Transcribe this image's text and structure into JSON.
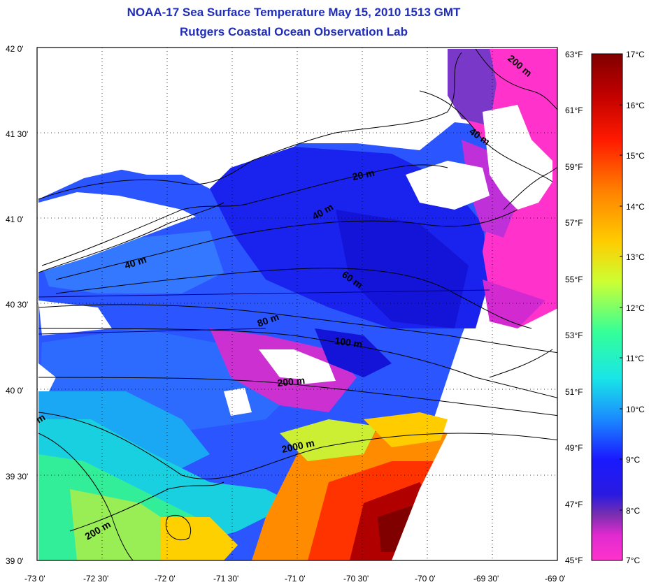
{
  "title": {
    "line1": "NOAA-17 Sea Surface Temperature May 15, 2010 1513 GMT",
    "line2": "Rutgers Coastal Ocean Observation Lab"
  },
  "axes": {
    "lon_ticks": [
      "-73 0'",
      "-72 30'",
      "-72 0'",
      "-71 30'",
      "-71 0'",
      "-70 30'",
      "-70 0'",
      "-69 30'",
      "-69 0'"
    ],
    "lat_ticks": [
      "42 0'",
      "41 30'",
      "41 0'",
      "40 30'",
      "40 0'",
      "39 30'",
      "39 0'"
    ],
    "lon_range": [
      -73.0,
      -69.0
    ],
    "lat_range": [
      39.0,
      42.0
    ],
    "grid": "dotted"
  },
  "colorbar": {
    "fahrenheit_ticks": [
      "63°F",
      "61°F",
      "59°F",
      "57°F",
      "55°F",
      "53°F",
      "51°F",
      "49°F",
      "47°F",
      "45°F"
    ],
    "celsius_ticks": [
      "17°C",
      "16°C",
      "15°C",
      "14°C",
      "13°C",
      "12°C",
      "11°C",
      "10°C",
      "9°C",
      "8°C",
      "7°C"
    ],
    "range_c": [
      7,
      17
    ],
    "colors": {
      "c7": "#ff33cc",
      "c8": "#7a2fb0",
      "c9": "#1a1aff",
      "c10": "#1a8cff",
      "c11": "#19e6e6",
      "c12": "#33ff99",
      "c13": "#ccff33",
      "c14": "#ffcc00",
      "c15": "#ff8000",
      "c16": "#ff1a00",
      "c17": "#800000"
    }
  },
  "contour_labels": [
    "20 m",
    "40 m",
    "40 m",
    "40 m",
    "60 m",
    "80 m",
    "100 m",
    "200 m",
    "200 m",
    "200 m",
    "2000 m",
    "m"
  ]
}
